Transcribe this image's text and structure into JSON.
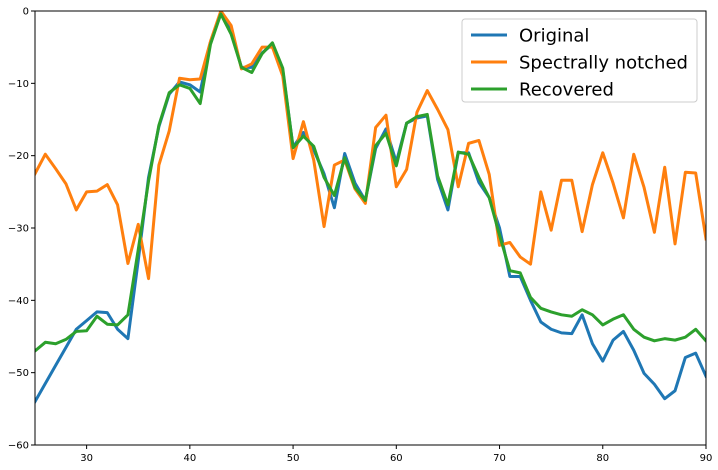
{
  "chart_data": {
    "type": "line",
    "title": "",
    "xlabel": "",
    "ylabel": "",
    "xlim": [
      25,
      90
    ],
    "ylim": [
      -60,
      0
    ],
    "xticks": [
      30,
      40,
      50,
      60,
      70,
      80,
      90
    ],
    "yticks": [
      0,
      -10,
      -20,
      -30,
      -40,
      -50,
      -60
    ],
    "grid": false,
    "legend_position": "top-right",
    "x": [
      25,
      26,
      27,
      28,
      29,
      30,
      31,
      32,
      33,
      34,
      35,
      36,
      37,
      38,
      39,
      40,
      41,
      42,
      43,
      44,
      45,
      46,
      47,
      48,
      49,
      50,
      51,
      52,
      53,
      54,
      55,
      56,
      57,
      58,
      59,
      60,
      61,
      62,
      63,
      64,
      65,
      66,
      67,
      68,
      69,
      70,
      71,
      72,
      73,
      74,
      75,
      76,
      77,
      78,
      79,
      80,
      81,
      82,
      83,
      84,
      85,
      86,
      87,
      88,
      89,
      90
    ],
    "series": [
      {
        "name": "Original",
        "color": "#1f77b4",
        "values": [
          -54.0,
          -51.5,
          -49.0,
          -46.5,
          -44.0,
          -42.8,
          -41.6,
          -41.7,
          -44.0,
          -45.3,
          -34.5,
          -23.0,
          -16.0,
          -11.5,
          -9.8,
          -10.2,
          -11.2,
          -4.3,
          -0.2,
          -2.8,
          -7.8,
          -7.8,
          -5.8,
          -4.6,
          -8.2,
          -18.8,
          -16.8,
          -19.2,
          -22.5,
          -27.2,
          -19.7,
          -23.8,
          -26.2,
          -19.0,
          -16.3,
          -20.9,
          -15.5,
          -14.8,
          -14.5,
          -23.3,
          -27.5,
          -19.6,
          -19.6,
          -23.7,
          -25.8,
          -30.0,
          -36.7,
          -36.7,
          -40.0,
          -43.0,
          -44.0,
          -44.5,
          -44.6,
          -42.0,
          -46.0,
          -48.4,
          -45.5,
          -44.3,
          -46.9,
          -50.1,
          -51.6,
          -53.6,
          -52.5,
          -47.9,
          -47.3,
          -50.5
        ]
      },
      {
        "name": "Spectrally notched",
        "color": "#ff7f0e",
        "values": [
          -22.5,
          -19.8,
          -21.8,
          -23.9,
          -27.5,
          -25.0,
          -24.9,
          -24.0,
          -26.8,
          -34.9,
          -29.5,
          -37.0,
          -21.3,
          -16.6,
          -9.3,
          -9.5,
          -9.4,
          -4.2,
          0.0,
          -2.0,
          -8.0,
          -7.3,
          -5.0,
          -5.0,
          -9.0,
          -20.4,
          -15.3,
          -20.6,
          -29.8,
          -21.3,
          -20.6,
          -24.6,
          -26.6,
          -16.1,
          -14.4,
          -24.3,
          -21.9,
          -14.0,
          -11.0,
          -13.6,
          -16.4,
          -24.3,
          -18.3,
          -17.9,
          -22.6,
          -32.4,
          -32.0,
          -34.0,
          -35.0,
          -25.0,
          -30.3,
          -23.4,
          -23.4,
          -30.5,
          -24.0,
          -19.6,
          -23.8,
          -28.6,
          -19.8,
          -24.4,
          -30.6,
          -21.6,
          -32.2,
          -22.3,
          -22.4,
          -31.5
        ]
      },
      {
        "name": "Recovered",
        "color": "#2ca02c",
        "values": [
          -47.0,
          -45.8,
          -46.0,
          -45.4,
          -44.3,
          -44.2,
          -42.2,
          -43.3,
          -43.4,
          -42.0,
          -33.0,
          -23.5,
          -15.8,
          -11.3,
          -10.2,
          -10.7,
          -12.8,
          -4.6,
          -0.4,
          -3.2,
          -7.8,
          -8.5,
          -5.9,
          -4.4,
          -7.9,
          -18.9,
          -17.3,
          -18.7,
          -23.0,
          -25.5,
          -20.3,
          -24.4,
          -26.2,
          -18.6,
          -16.9,
          -21.4,
          -15.5,
          -14.6,
          -14.3,
          -22.8,
          -26.8,
          -19.5,
          -19.8,
          -23.0,
          -25.8,
          -31.0,
          -35.9,
          -36.2,
          -39.6,
          -41.1,
          -41.6,
          -42.0,
          -42.2,
          -41.3,
          -42.0,
          -43.4,
          -42.6,
          -42.0,
          -44.0,
          -45.1,
          -45.6,
          -45.3,
          -45.5,
          -45.1,
          -44.0,
          -45.6
        ]
      }
    ]
  }
}
